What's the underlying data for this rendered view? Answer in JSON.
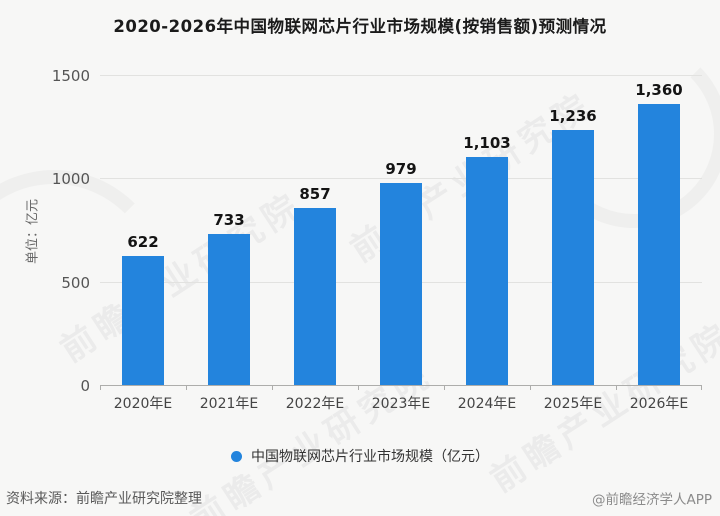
{
  "title": "2020-2026年中国物联网芯片行业市场规模(按销售额)预测情况",
  "chart_data": {
    "type": "bar",
    "categories": [
      "2020年E",
      "2021年E",
      "2022年E",
      "2023年E",
      "2024年E",
      "2025年E",
      "2026年E"
    ],
    "values": [
      622,
      733,
      857,
      979,
      1103,
      1236,
      1360
    ],
    "value_labels": [
      "622",
      "733",
      "857",
      "979",
      "1,103",
      "1,236",
      "1,360"
    ],
    "title": "2020-2026年中国物联网芯片行业市场规模(按销售额)预测情况",
    "xlabel": "",
    "ylabel": "单位：亿元",
    "ylim": [
      0,
      1500
    ],
    "yticks": [
      0,
      500,
      1000,
      1500
    ],
    "grid": true,
    "legend_position": "bottom",
    "legend": "中国物联网芯片行业市场规模（亿元）",
    "bar_color": "#2384dd"
  },
  "legend": {
    "label": "中国物联网芯片行业市场规模（亿元）"
  },
  "footer": {
    "source": "资料来源：前瞻产业研究院整理",
    "credit": "@前瞻经济学人APP"
  },
  "watermark": {
    "text": "前瞻产业研究院"
  },
  "colors": {
    "bar": "#2384dd",
    "background": "#f7f7f6",
    "gridline": "#e2e2e0",
    "axis": "#adadab"
  }
}
